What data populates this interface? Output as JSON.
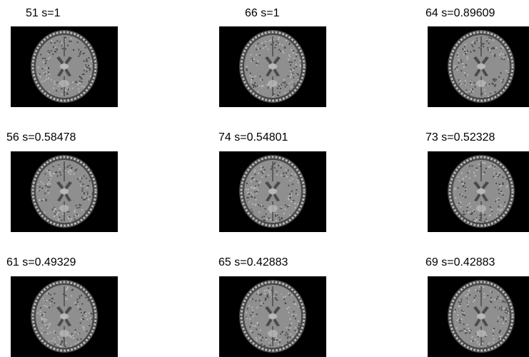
{
  "grid": {
    "items": [
      {
        "caption": "51 s=1"
      },
      {
        "caption": "66 s=1"
      },
      {
        "caption": "64 s=0.89609"
      },
      {
        "caption": "56 s=0.58478"
      },
      {
        "caption": "74 s=0.54801"
      },
      {
        "caption": "73 s=0.52328"
      },
      {
        "caption": "61 s=0.49329"
      },
      {
        "caption": "65 s=0.42883"
      },
      {
        "caption": "69 s=0.42883"
      }
    ]
  },
  "colors": {
    "background": "#ffffff",
    "image_background": "#000000",
    "tissue": "#8f8f8f",
    "tissue_light": "#b8b8b8",
    "tissue_dark": "#4a4a4a"
  },
  "icons": {
    "thumbnail": "brain-mri-slice-icon"
  }
}
